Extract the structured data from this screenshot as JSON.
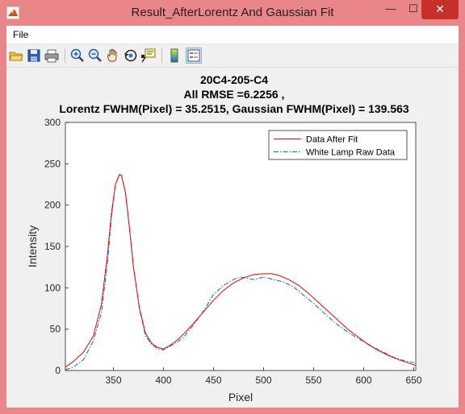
{
  "window": {
    "title": "Result_AfterLorentz And Gaussian Fit",
    "minimize_glyph": "—",
    "maximize_glyph": "☐",
    "close_glyph": "✕"
  },
  "menu": {
    "file_label": "File"
  },
  "toolbar": {
    "buttons": [
      "open-icon",
      "save-icon",
      "print-icon",
      "zoom-in-icon",
      "zoom-out-icon",
      "pan-icon",
      "rotate-3d-icon",
      "data-cursor-icon",
      "colorbar-icon",
      "legend-icon"
    ]
  },
  "colors": {
    "fit_line": "#ff0000",
    "raw_line": "#0072bd",
    "window_frame": "#e8868a",
    "close_button": "#c7302b"
  },
  "chart_data": {
    "type": "line",
    "title_lines": [
      "20C4-205-C4",
      "All RMSE =6.2256 ,",
      "Lorentz FWHM(Pixel) = 35.2515, Gaussian FWHM(Pixel) = 139.563"
    ],
    "xlabel": "Pixel",
    "ylabel": "Intensity",
    "xlim": [
      302,
      652
    ],
    "ylim": [
      0,
      300
    ],
    "xticks": [
      350,
      400,
      450,
      500,
      550,
      600,
      650
    ],
    "yticks": [
      0,
      50,
      100,
      150,
      200,
      250,
      300
    ],
    "legend_position": "top-right",
    "grid": false,
    "series": [
      {
        "name": "Data After Fit",
        "style": "solid",
        "x": [
          302,
          310,
          320,
          330,
          338,
          344,
          348,
          352,
          356,
          358,
          362,
          366,
          370,
          376,
          382,
          388,
          394,
          400,
          406,
          412,
          420,
          430,
          440,
          450,
          460,
          470,
          480,
          490,
          500,
          508,
          515,
          525,
          535,
          545,
          555,
          565,
          575,
          585,
          595,
          605,
          615,
          625,
          635,
          645,
          652
        ],
        "y": [
          4,
          11,
          22,
          42,
          80,
          140,
          190,
          225,
          237,
          236,
          215,
          172,
          125,
          75,
          45,
          33,
          28,
          26,
          30,
          35,
          44,
          57,
          71,
          85,
          97,
          106,
          112,
          116,
          117,
          117,
          115,
          110,
          103,
          93,
          82,
          71,
          60,
          49,
          40,
          31,
          24,
          18,
          13,
          9,
          6
        ]
      },
      {
        "name": "White Lamp Raw Data",
        "style": "dashdot",
        "x": [
          302,
          310,
          320,
          330,
          338,
          344,
          348,
          352,
          356,
          358,
          362,
          366,
          370,
          376,
          382,
          388,
          394,
          400,
          406,
          412,
          420,
          430,
          440,
          450,
          460,
          470,
          476,
          482,
          490,
          500,
          510,
          520,
          530,
          540,
          550,
          560,
          570,
          580,
          590,
          600,
          610,
          620,
          630,
          640,
          652
        ],
        "y": [
          1,
          4,
          13,
          36,
          70,
          130,
          185,
          225,
          238,
          236,
          216,
          172,
          125,
          74,
          42,
          32,
          26,
          25,
          29,
          33,
          40,
          55,
          72,
          92,
          103,
          110,
          113,
          112,
          110,
          113,
          110,
          107,
          101,
          91,
          81,
          70,
          59,
          50,
          42,
          35,
          28,
          22,
          16,
          12,
          9
        ]
      }
    ]
  }
}
